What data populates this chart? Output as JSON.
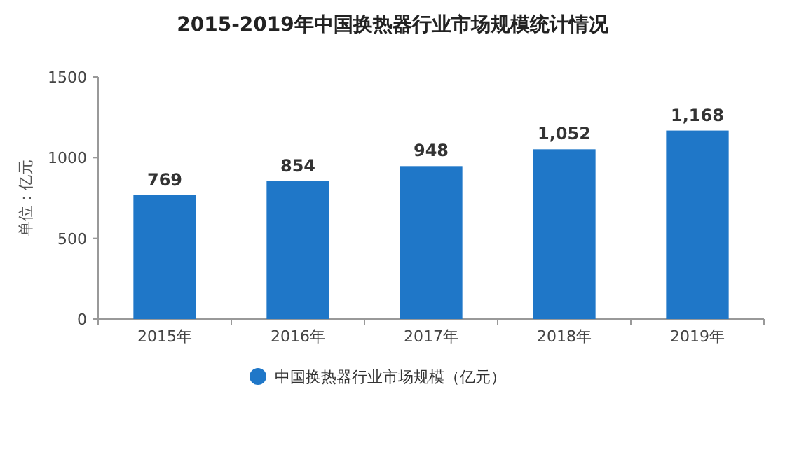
{
  "chart_data": {
    "type": "bar",
    "title": "2015-2019年中国换热器行业市场规模统计情况",
    "ylabel": "单位：亿元",
    "categories": [
      "2015年",
      "2016年",
      "2017年",
      "2018年",
      "2019年"
    ],
    "series": [
      {
        "name": "中国换热器行业市场规模（亿元）",
        "color": "#1f77c8",
        "values": [
          769,
          854,
          948,
          1052,
          1168
        ],
        "value_labels": [
          "769",
          "854",
          "948",
          "1,052",
          "1,168"
        ]
      }
    ],
    "ylim": [
      0,
      1500
    ],
    "yticks": [
      0,
      500,
      1000,
      1500
    ],
    "grid": false,
    "legend": "bottom"
  }
}
